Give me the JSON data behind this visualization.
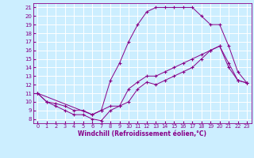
{
  "xlabel": "Windchill (Refroidissement éolien,°C)",
  "bg_color": "#cceeff",
  "line_color": "#880088",
  "grid_color": "#ffffff",
  "xlim": [
    -0.5,
    23.5
  ],
  "ylim": [
    7.5,
    21.5
  ],
  "xticks": [
    0,
    1,
    2,
    3,
    4,
    5,
    6,
    7,
    8,
    9,
    10,
    11,
    12,
    13,
    14,
    15,
    16,
    17,
    18,
    19,
    20,
    21,
    22,
    23
  ],
  "yticks": [
    8,
    9,
    10,
    11,
    12,
    13,
    14,
    15,
    16,
    17,
    18,
    19,
    20,
    21
  ],
  "series1_x": [
    0,
    1,
    2,
    3,
    4,
    5,
    6,
    7,
    8,
    9,
    10,
    11,
    12,
    13,
    14,
    15,
    16,
    17,
    18,
    19,
    20,
    21,
    22,
    23
  ],
  "series1_y": [
    11,
    10,
    9.5,
    9,
    8.5,
    8.5,
    8,
    7.8,
    9,
    9.5,
    10,
    11.5,
    12.3,
    12,
    12.5,
    13,
    13.5,
    14,
    15,
    16,
    16.5,
    14,
    12.5,
    12.2
  ],
  "series2_x": [
    0,
    1,
    2,
    3,
    4,
    5,
    6,
    7,
    8,
    9,
    10,
    11,
    12,
    13,
    14,
    15,
    16,
    17,
    18,
    19,
    20,
    21,
    22,
    23
  ],
  "series2_y": [
    11,
    10,
    9.8,
    9.5,
    9,
    9,
    8.5,
    9,
    12.5,
    14.5,
    17,
    19,
    20.5,
    21,
    21,
    21,
    21,
    21,
    20,
    19,
    19,
    16.5,
    13.5,
    12.2
  ],
  "series3_x": [
    0,
    6,
    7,
    8,
    9,
    10,
    11,
    12,
    13,
    14,
    15,
    16,
    17,
    18,
    19,
    20,
    21,
    22,
    23
  ],
  "series3_y": [
    11,
    8.5,
    9,
    9.5,
    9.5,
    11.5,
    12.3,
    13,
    13,
    13.5,
    14,
    14.5,
    15,
    15.5,
    16,
    16.5,
    14.5,
    12.5,
    12.2
  ]
}
